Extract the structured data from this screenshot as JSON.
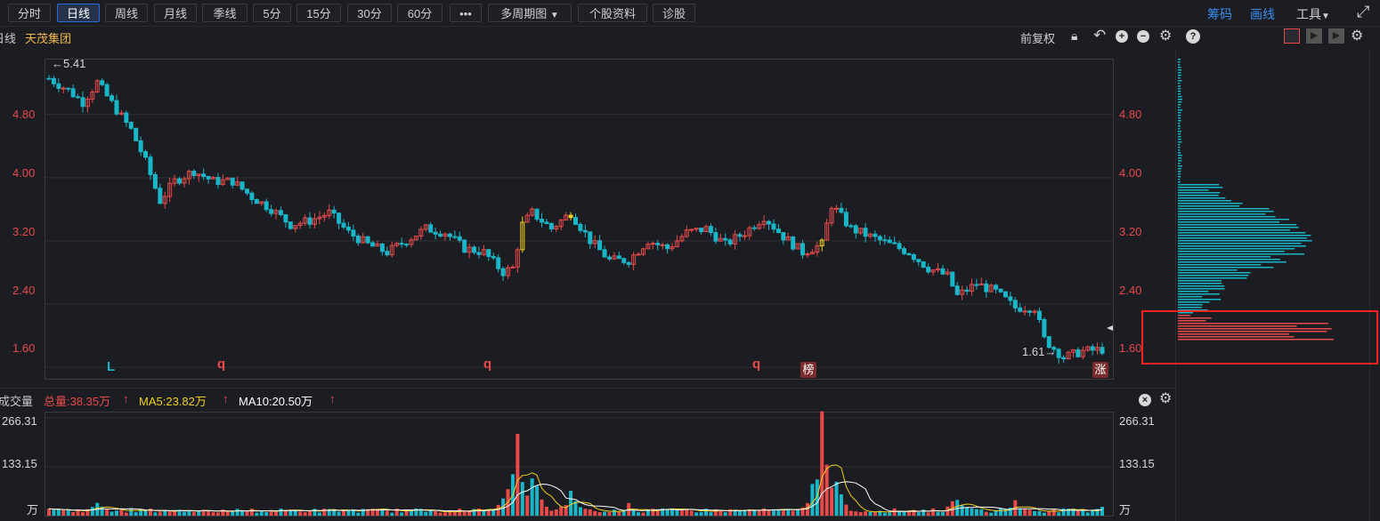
{
  "toolbar": {
    "tabs": [
      {
        "label": "分时",
        "active": false
      },
      {
        "label": "日线",
        "active": true
      },
      {
        "label": "周线",
        "active": false
      },
      {
        "label": "月线",
        "active": false
      },
      {
        "label": "季线",
        "active": false
      },
      {
        "label": "5分",
        "active": false
      },
      {
        "label": "15分",
        "active": false
      },
      {
        "label": "30分",
        "active": false
      },
      {
        "label": "60分",
        "active": false
      },
      {
        "label": "•••",
        "active": false
      },
      {
        "label": "多周期图",
        "active": false
      },
      {
        "label": "个股资料",
        "active": false
      },
      {
        "label": "诊股",
        "active": false
      }
    ],
    "right_links": {
      "chouma": "筹码",
      "huaxian": "画线",
      "tools": "工具"
    }
  },
  "chart_header": {
    "period_label": "日线",
    "stock_name": "天茂集团",
    "adjust_label": "前复权"
  },
  "price_axis": {
    "ticks": [
      "4.80",
      "4.00",
      "3.20",
      "2.40",
      "1.60"
    ],
    "high_marker": "←5.41",
    "low_marker": "1.61→"
  },
  "signals": [
    {
      "text": "L",
      "color": "#19b6c8"
    },
    {
      "text": "q",
      "color": "#e84a4a"
    },
    {
      "text": "q",
      "color": "#e84a4a"
    },
    {
      "text": "q",
      "color": "#e84a4a"
    }
  ],
  "badges": {
    "bang": "榜",
    "zhang": "涨"
  },
  "volume": {
    "title": "成交量",
    "total": "总量:38.35万",
    "ma5": "MA5:23.82万",
    "ma10": "MA10:20.50万",
    "ticks": [
      "266.31",
      "133.15",
      "万"
    ]
  },
  "colors": {
    "up": "#e84a4a",
    "down": "#19b6c8",
    "ma5": "#f0d020",
    "ma10": "#ffffff",
    "highlight": "#ff2020"
  },
  "chart_data": {
    "type": "candlestick",
    "price_ylim": [
      1.45,
      5.5
    ],
    "volume_ylim": [
      0,
      266.31
    ],
    "trend": [
      [
        0,
        5.25
      ],
      [
        4,
        5.1
      ],
      [
        7,
        4.95
      ],
      [
        10,
        5.2
      ],
      [
        14,
        4.85
      ],
      [
        17,
        4.6
      ],
      [
        20,
        4.2
      ],
      [
        23,
        3.7
      ],
      [
        26,
        3.95
      ],
      [
        30,
        4.08
      ],
      [
        34,
        3.95
      ],
      [
        38,
        3.95
      ],
      [
        42,
        3.75
      ],
      [
        46,
        3.6
      ],
      [
        50,
        3.4
      ],
      [
        54,
        3.45
      ],
      [
        58,
        3.55
      ],
      [
        62,
        3.3
      ],
      [
        66,
        3.15
      ],
      [
        70,
        3.05
      ],
      [
        74,
        3.2
      ],
      [
        78,
        3.35
      ],
      [
        82,
        3.3
      ],
      [
        86,
        3.1
      ],
      [
        90,
        3.05
      ],
      [
        94,
        2.8
      ],
      [
        96,
        2.85
      ],
      [
        98,
        3.4
      ],
      [
        100,
        3.55
      ],
      [
        104,
        3.35
      ],
      [
        108,
        3.55
      ],
      [
        112,
        3.2
      ],
      [
        116,
        2.95
      ],
      [
        120,
        2.95
      ],
      [
        124,
        3.2
      ],
      [
        128,
        3.1
      ],
      [
        132,
        3.3
      ],
      [
        136,
        3.35
      ],
      [
        140,
        3.15
      ],
      [
        144,
        3.3
      ],
      [
        148,
        3.5
      ],
      [
        152,
        3.25
      ],
      [
        156,
        3.05
      ],
      [
        160,
        3.15
      ],
      [
        162,
        3.65
      ],
      [
        166,
        3.35
      ],
      [
        170,
        3.25
      ],
      [
        174,
        3.15
      ],
      [
        178,
        3.05
      ],
      [
        182,
        2.85
      ],
      [
        186,
        2.75
      ],
      [
        188,
        2.5
      ],
      [
        192,
        2.65
      ],
      [
        196,
        2.55
      ],
      [
        200,
        2.35
      ],
      [
        204,
        2.35
      ],
      [
        206,
        1.95
      ],
      [
        210,
        1.72
      ],
      [
        214,
        1.8
      ],
      [
        218,
        1.82
      ]
    ],
    "volume_peaks": [
      [
        0,
        12
      ],
      [
        10,
        40
      ],
      [
        30,
        15
      ],
      [
        90,
        25
      ],
      [
        97,
        250
      ],
      [
        100,
        150
      ],
      [
        108,
        70
      ],
      [
        120,
        40
      ],
      [
        160,
        260
      ],
      [
        163,
        100
      ],
      [
        188,
        70
      ],
      [
        200,
        45
      ],
      [
        218,
        30
      ]
    ]
  }
}
